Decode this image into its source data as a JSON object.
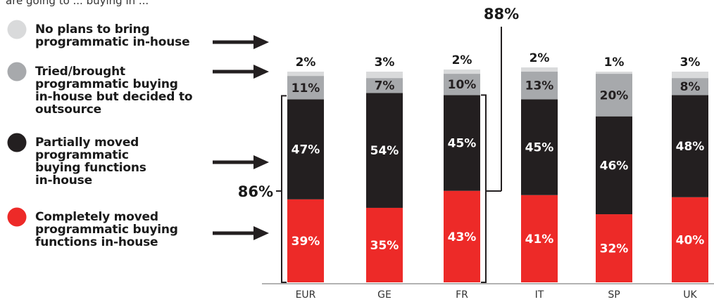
{
  "header_text": "are going to ... buying in ...",
  "chart_data": {
    "type": "bar",
    "stacked": true,
    "categories": [
      "EUR",
      "GE",
      "FR",
      "IT",
      "SP",
      "UK"
    ],
    "ylim": [
      0,
      100
    ],
    "grid": false,
    "legend_placement": "left",
    "series": [
      {
        "name": "Completely moved programmatic buying functions in-house",
        "color": "#ed2a28",
        "label_color": "#ffffff",
        "values": [
          39,
          35,
          43,
          41,
          32,
          40
        ]
      },
      {
        "name": "Partially moved programmatic buying functions in-house",
        "color": "#231f20",
        "label_color": "#ffffff",
        "values": [
          47,
          54,
          45,
          45,
          46,
          48
        ]
      },
      {
        "name": "Tried/brought programmatic buying in-house but decided to outsource",
        "color": "#a7a9ac",
        "label_color": "#231f20",
        "values": [
          11,
          7,
          10,
          13,
          20,
          8
        ]
      },
      {
        "name": "No plans to bring programmatic in-house",
        "color": "#d9dadb",
        "label_color": "#231f20",
        "values": [
          2,
          3,
          2,
          2,
          1,
          3
        ]
      }
    ],
    "annotations": [
      {
        "text": "86%",
        "category": "EUR",
        "series_span": [
          0,
          1
        ]
      },
      {
        "text": "88%",
        "category": "FR",
        "series_span": [
          0,
          1
        ]
      }
    ]
  },
  "legend": [
    {
      "lines": [
        "No plans to bring",
        "programmatic in-house"
      ],
      "color": "#d9dadb"
    },
    {
      "lines": [
        "Tried/brought",
        "programmatic buying",
        "in-house but decided to",
        "outsource"
      ],
      "color": "#a7a9ac"
    },
    {
      "lines": [
        "Partially moved",
        "programmatic",
        "buying functions",
        "in-house"
      ],
      "color": "#231f20"
    },
    {
      "lines": [
        "Completely moved",
        "programmatic buying",
        "functions in-house"
      ],
      "color": "#ed2a28"
    }
  ]
}
